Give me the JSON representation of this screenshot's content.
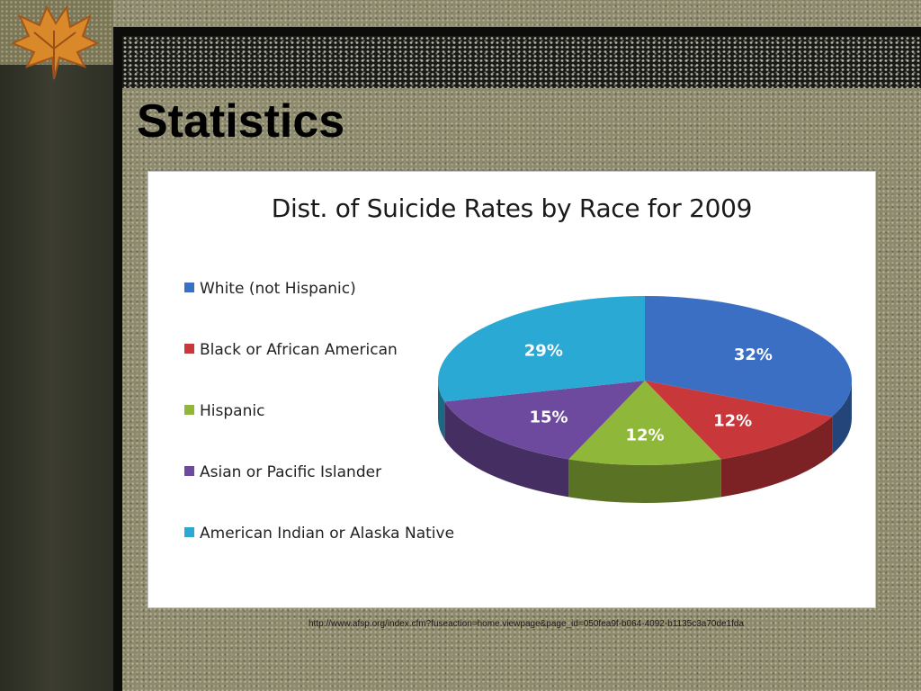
{
  "slide": {
    "title": "Statistics",
    "source_url": "http://www.afsp.org/index.cfm?fuseaction=home.viewpage&page_id=050fea9f-b064-4092-b1135c3a70de1fda"
  },
  "chart_data": {
    "type": "pie",
    "title": "Dist. of Suicide Rates by Race for 2009",
    "legend_position": "left",
    "categories": [
      "White (not Hispanic)",
      "Black or African American",
      "Hispanic",
      "Asian or Pacific Islander",
      "American Indian or Alaska Native"
    ],
    "values": [
      32,
      12,
      12,
      15,
      29
    ],
    "labels": [
      "32%",
      "12%",
      "12%",
      "15%",
      "29%"
    ],
    "colors": [
      "#3a6fc4",
      "#c8373a",
      "#8fb83a",
      "#6e4a9e",
      "#29a9d4"
    ]
  }
}
